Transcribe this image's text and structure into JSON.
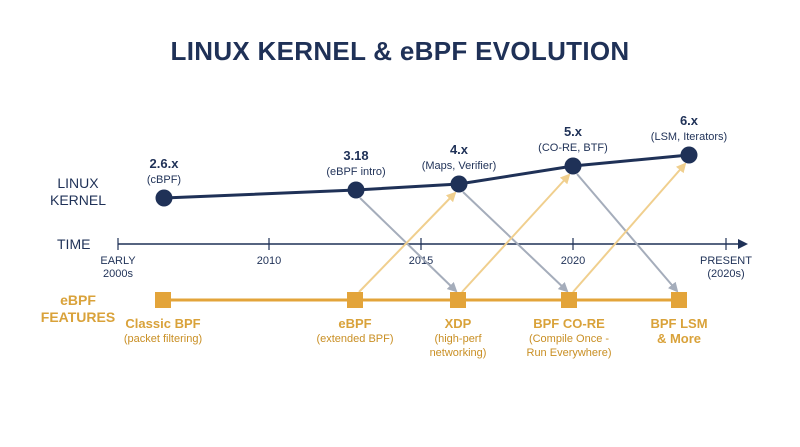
{
  "title": "LINUX KERNEL & eBPF EVOLUTION",
  "row_labels": {
    "kernel": [
      "LINUX",
      "KERNEL"
    ],
    "time": "TIME",
    "features": [
      "eBPF",
      "FEATURES"
    ]
  },
  "time_ticks": [
    {
      "label_lines": [
        "EARLY",
        "2000s"
      ]
    },
    {
      "label_lines": [
        "2010"
      ]
    },
    {
      "label_lines": [
        "2015"
      ]
    },
    {
      "label_lines": [
        "2020"
      ]
    },
    {
      "label_lines": [
        "PRESENT",
        "(2020s)"
      ]
    }
  ],
  "kernel_versions": [
    {
      "version": "2.6.x",
      "detail": "(cBPF)"
    },
    {
      "version": "3.18",
      "detail": "(eBPF intro)"
    },
    {
      "version": "4.x",
      "detail": "(Maps, Verifier)"
    },
    {
      "version": "5.x",
      "detail": "(CO-RE, BTF)"
    },
    {
      "version": "6.x",
      "detail": "(LSM, Iterators)"
    }
  ],
  "features": [
    {
      "name_lines": [
        "Classic BPF"
      ],
      "detail_lines": [
        "(packet filtering)"
      ]
    },
    {
      "name_lines": [
        "eBPF"
      ],
      "detail_lines": [
        "(extended BPF)"
      ]
    },
    {
      "name_lines": [
        "XDP"
      ],
      "detail_lines": [
        "(high-perf",
        "networking)"
      ]
    },
    {
      "name_lines": [
        "BPF CO-RE"
      ],
      "detail_lines": [
        "(Compile Once -",
        "Run Everywhere)"
      ]
    },
    {
      "name_lines": [
        "BPF LSM",
        "& More"
      ],
      "detail_lines": []
    }
  ],
  "colors": {
    "navy": "#1f3157",
    "gold": "#e3a43a",
    "gold_light": "#f0cf8e",
    "gray_arrow": "#a5adbb"
  }
}
